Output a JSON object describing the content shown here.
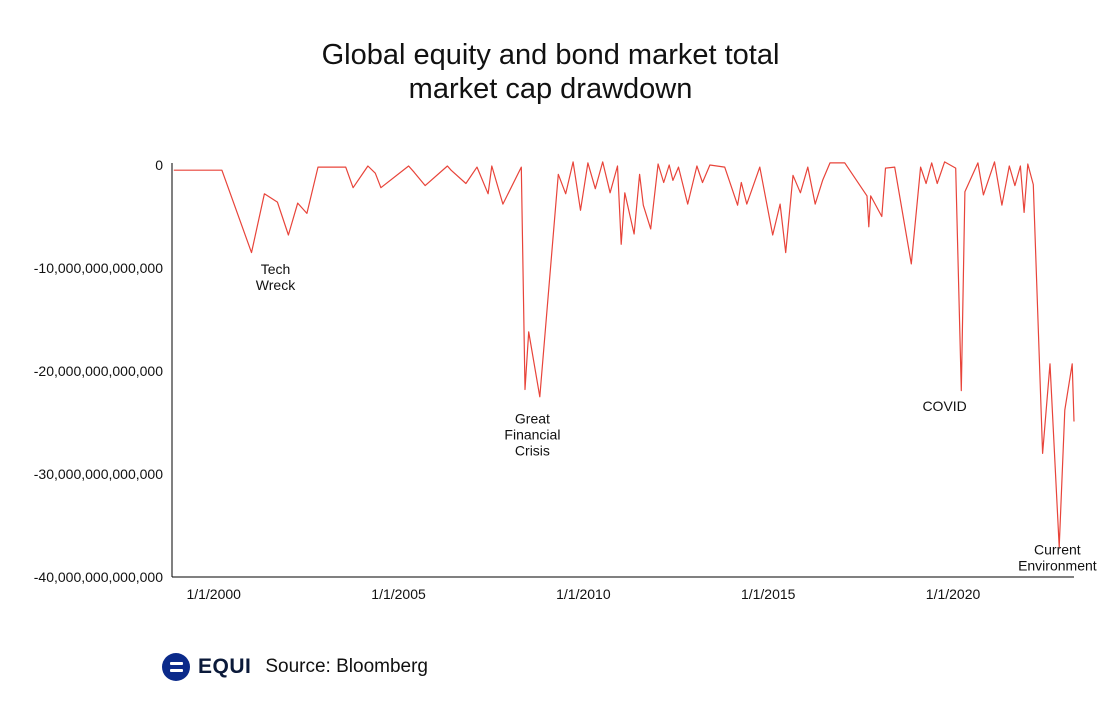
{
  "chart_data": {
    "type": "line",
    "title_lines": [
      "Global equity and bond market total",
      "market cap drawdown"
    ],
    "xlabel": "",
    "ylabel": "",
    "x_tick_labels": [
      "1/1/2000",
      "1/1/2005",
      "1/1/2010",
      "1/1/2015",
      "1/1/2020"
    ],
    "x_tick_years": [
      2000,
      2005,
      2010,
      2015,
      2020
    ],
    "xlim": [
      1999.9,
      2024.3
    ],
    "y_tick_labels": [
      "0",
      "-10,000,000,000,000",
      "-20,000,000,000,000",
      "-30,000,000,000,000",
      "-40,000,000,000,000"
    ],
    "y_tick_values": [
      0,
      -10000000000000,
      -20000000000000,
      -30000000000000,
      -40000000000000
    ],
    "ylim": [
      -40000000000000,
      0
    ],
    "grid": false,
    "line_color": "#e8443a",
    "series": [
      {
        "x": [
          1999.95,
          2001.25,
          2002.05,
          2002.4,
          2002.75,
          2003.05,
          2003.3,
          2003.55,
          2003.85,
          2004.6,
          2004.8,
          2005.2,
          2005.4,
          2005.55,
          2006.3,
          2006.45,
          2006.75,
          2007.35,
          2007.45,
          2007.85,
          2008.15,
          2008.45,
          2008.55,
          2008.85,
          2009.35,
          2009.45,
          2009.55,
          2009.85,
          2010.35,
          2010.55,
          2010.75,
          2010.95,
          2011.15,
          2011.35,
          2011.55,
          2011.75,
          2011.95,
          2012.05,
          2012.15,
          2012.4,
          2012.55,
          2012.65,
          2012.85,
          2013.05,
          2013.2,
          2013.35,
          2013.45,
          2013.6,
          2013.85,
          2014.1,
          2014.25,
          2014.45,
          2014.85,
          2015.2,
          2015.3,
          2015.45,
          2015.8,
          2016.15,
          2016.35,
          2016.5,
          2016.7,
          2016.9,
          2017.1,
          2017.3,
          2017.5,
          2017.7,
          2017.9,
          2018.1,
          2018.7,
          2018.75,
          2018.8,
          2019.1,
          2019.2,
          2019.45,
          2019.9,
          2020.15,
          2020.3,
          2020.45,
          2020.6,
          2020.8,
          2021.1,
          2021.25,
          2021.35,
          2021.7,
          2021.85,
          2022.15,
          2022.35,
          2022.55,
          2022.7,
          2022.85,
          2022.95,
          2023.05,
          2023.2,
          2023.45,
          2023.65,
          2023.9,
          2024.05,
          2024.25,
          2024.3
        ],
        "y": [
          -500000000000,
          -500000000000,
          -8500000000000,
          -2800000000000,
          -3600000000000,
          -6800000000000,
          -3700000000000,
          -4700000000000,
          -200000000000,
          -200000000000,
          -2200000000000,
          -100000000000,
          -800000000000,
          -2200000000000,
          -100000000000,
          -700000000000,
          -2000000000000,
          -100000000000,
          -500000000000,
          -1800000000000,
          -200000000000,
          -2800000000000,
          -100000000000,
          -3800000000000,
          -200000000000,
          -21800000000000,
          -16200000000000,
          -22500000000000,
          -900000000000,
          -2800000000000,
          300000000000,
          -4400000000000,
          200000000000,
          -2300000000000,
          300000000000,
          -2700000000000,
          -100000000000,
          -7700000000000,
          -2700000000000,
          -6700000000000,
          -900000000000,
          -3900000000000,
          -6200000000000,
          100000000000,
          -1700000000000,
          0,
          -1500000000000,
          -200000000000,
          -3800000000000,
          -100000000000,
          -1700000000000,
          0,
          -200000000000,
          -3900000000000,
          -1700000000000,
          -3800000000000,
          -200000000000,
          -6800000000000,
          -3800000000000,
          -8500000000000,
          -1000000000000,
          -2700000000000,
          -200000000000,
          -3800000000000,
          -1500000000000,
          200000000000,
          200000000000,
          200000000000,
          -3000000000000,
          -6000000000000,
          -3000000000000,
          -5000000000000,
          -300000000000,
          -200000000000,
          -9600000000000,
          -200000000000,
          -1800000000000,
          200000000000,
          -1800000000000,
          300000000000,
          -300000000000,
          -21900000000000,
          -2600000000000,
          200000000000,
          -2900000000000,
          300000000000,
          -3900000000000,
          -100000000000,
          -2000000000000,
          -100000000000,
          -4600000000000,
          100000000000,
          -1900000000000,
          -28000000000000,
          -19300000000000,
          -37100000000000,
          -23800000000000,
          -19300000000000,
          -24900000000000
        ]
      }
    ],
    "annotations": [
      {
        "lines": [
          "Tech",
          "Wreck"
        ],
        "x": 2002.7,
        "y": -10600000000000
      },
      {
        "lines": [
          "Great",
          "Financial",
          "Crisis"
        ],
        "x": 2009.65,
        "y": -25100000000000
      },
      {
        "lines": [
          "COVID"
        ],
        "x": 2020.8,
        "y": -23900000000000
      },
      {
        "lines": [
          "Current",
          "Environment"
        ],
        "x": 2023.85,
        "y": -37800000000000
      }
    ]
  },
  "footer": {
    "brand": "EQUI",
    "source": "Source: Bloomberg"
  }
}
